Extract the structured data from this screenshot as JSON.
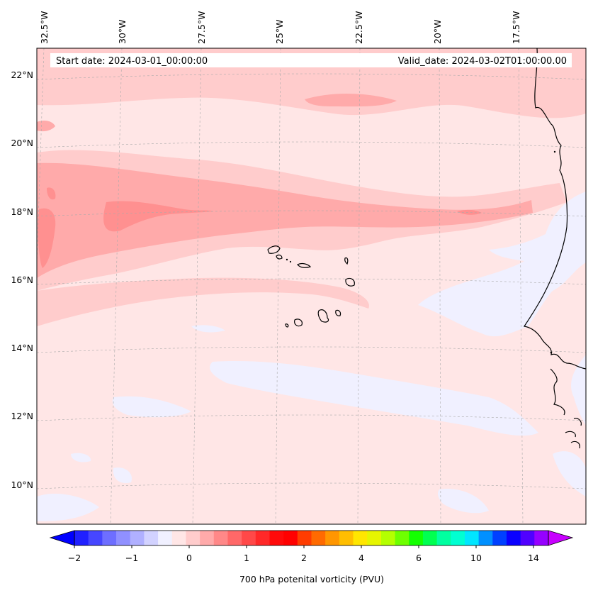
{
  "map": {
    "region": "Eastern North Atlantic / Cape Verde / West African coast",
    "top_labels": [
      "32.5°W",
      "30°W",
      "27.5°W",
      "25°W",
      "22.5°W",
      "20°W",
      "17.5°W"
    ],
    "left_labels": [
      "22°N",
      "20°N",
      "18°N",
      "16°N",
      "14°N",
      "12°N",
      "10°N"
    ]
  },
  "header": {
    "start_label": "Start date: 2024-03-01_00:00:00",
    "valid_label": "Valid_date: 2024-03-02T01:00:00.00"
  },
  "colorbar": {
    "title": "700 hPa potenital vorticity (PVU)",
    "tick_labels": [
      "−2",
      "−1",
      "0",
      "1",
      "2",
      "4",
      "6",
      "10",
      "14"
    ],
    "colors": [
      "#0000ff",
      "#2020ff",
      "#4646ff",
      "#6e6eff",
      "#9090ff",
      "#b0b0ff",
      "#d2d2ff",
      "#f0f0ff",
      "#ffe6e6",
      "#ffcccc",
      "#ffaaaa",
      "#ff8888",
      "#ff6868",
      "#ff4848",
      "#ff2828",
      "#ff0a0a",
      "#ff0000",
      "#ff3c00",
      "#ff6a00",
      "#ff9600",
      "#ffbe00",
      "#ffe600",
      "#e6f500",
      "#b4ff00",
      "#6eff00",
      "#14ff00",
      "#00ff50",
      "#00ffa0",
      "#00ffd2",
      "#00e6ff",
      "#0090ff",
      "#0040ff",
      "#0a00ff",
      "#5000ff",
      "#9600ff",
      "#c800ff"
    ]
  },
  "colors": {
    "background_field": "#ffe6e6",
    "light_band": "#ffcccc",
    "mid_band": "#ffaaaa",
    "strong_band": "#ff9090",
    "negative_patch": "#f0f0ff",
    "coastline": "#000000"
  }
}
